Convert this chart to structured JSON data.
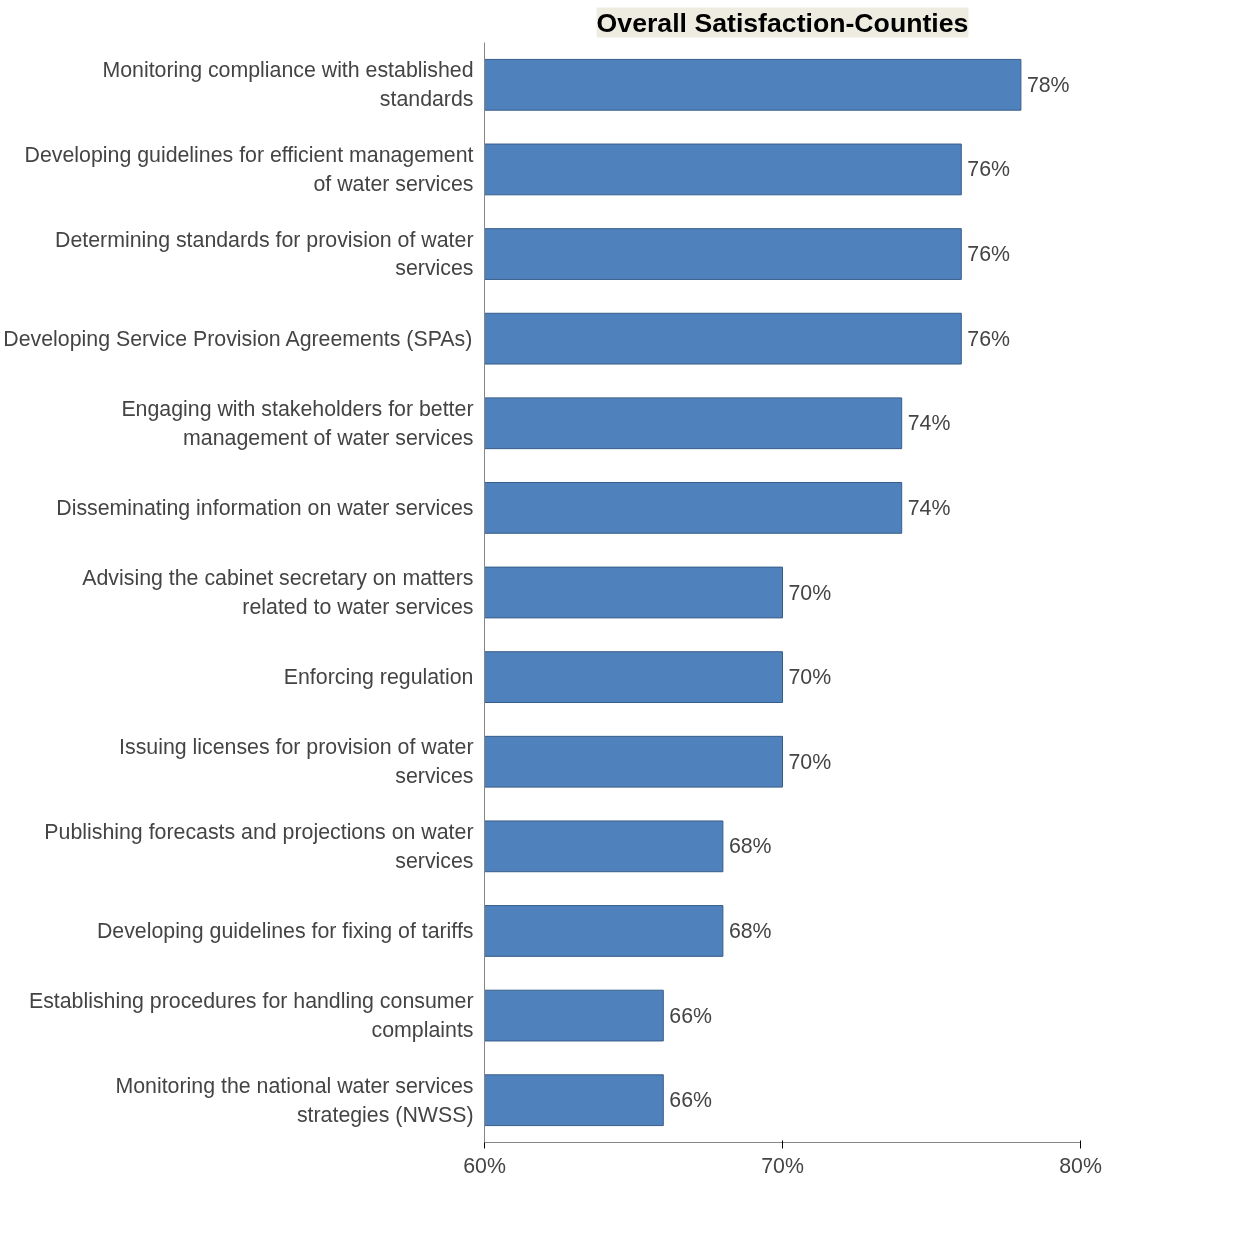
{
  "chart_data": {
    "type": "bar",
    "orientation": "horizontal",
    "title": "Overall Satisfaction-Counties",
    "categories": [
      "Monitoring compliance with established standards",
      "Developing guidelines for efficient management of water services",
      "Determining standards for provision of water services",
      "Developing Service Provision Agreements (SPAs)",
      "Engaging with stakeholders for better management of water services",
      "Disseminating information on water services",
      "Advising the cabinet secretary on matters related to water services",
      "Enforcing regulation",
      "Issuing licenses for provision of water services",
      "Publishing forecasts and projections on water services",
      "Developing guidelines for fixing of tariffs",
      "Establishing procedures for handling consumer complaints",
      "Monitoring the national water services strategies (NWSS)"
    ],
    "values": [
      78,
      76,
      76,
      76,
      74,
      74,
      70,
      70,
      70,
      68,
      68,
      66,
      66
    ],
    "value_labels": [
      "78%",
      "76%",
      "76%",
      "76%",
      "74%",
      "74%",
      "70%",
      "70%",
      "70%",
      "68%",
      "68%",
      "66%",
      "66%"
    ],
    "color": "#4f81bd",
    "xlim": [
      60,
      80
    ],
    "xticks": [
      {
        "value": 60,
        "label": "60%"
      },
      {
        "value": 70,
        "label": "70%"
      },
      {
        "value": 80,
        "label": "80%"
      }
    ],
    "grid": false
  }
}
